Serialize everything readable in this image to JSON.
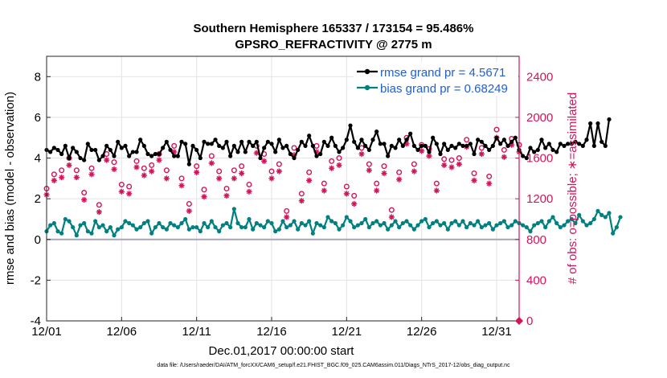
{
  "chart_data": {
    "type": "line",
    "title": "Southern Hemisphere 165337 / 173154 = 95.486%",
    "subtitle": "GPSRO_REFRACTIVITY @ 2775 m",
    "xlabel": "Dec.01,2017 00:00:00 start",
    "ylabel": "rmse and bias (model - observation)",
    "y2label": "# of obs: o=possible; ∗=assimilated",
    "xlim": [
      0,
      31.5
    ],
    "ylim": [
      -4,
      9
    ],
    "y2lim": [
      0,
      2600
    ],
    "x_ticks": [
      0,
      5,
      10,
      15,
      20,
      25,
      30
    ],
    "x_tick_labels": [
      "12/01",
      "12/06",
      "12/11",
      "12/16",
      "12/21",
      "12/26",
      "12/31"
    ],
    "y_ticks": [
      -4,
      -2,
      0,
      2,
      4,
      6,
      8
    ],
    "y_tick_labels": [
      "-4",
      "-2",
      "0",
      "2",
      "4",
      "6",
      "8"
    ],
    "y2_ticks": [
      0,
      400,
      800,
      1200,
      1600,
      2000,
      2400
    ],
    "y2_tick_labels": [
      "0",
      "400",
      "800",
      "1200",
      "1600",
      "2000",
      "2400"
    ],
    "grid": true,
    "legend_position": "top-right",
    "series": [
      {
        "name": "rmse grand pr = 4.5671",
        "color": "#000000",
        "marker": "circle-filled",
        "axis": "left",
        "step": 0.25,
        "values": [
          4.4,
          4.3,
          4.5,
          4.4,
          4.2,
          4.6,
          4.0,
          4.5,
          4.3,
          4.0,
          3.9,
          4.7,
          4.4,
          4.4,
          3.9,
          4.1,
          4.6,
          4.4,
          4.1,
          4.8,
          4.5,
          4.6,
          4.1,
          4.3,
          4.3,
          4.9,
          4.6,
          4.2,
          4.1,
          4.2,
          4.2,
          4.5,
          4.8,
          4.4,
          4.1,
          4.1,
          4.8,
          4.7,
          3.7,
          4.6,
          4.4,
          4.0,
          4.8,
          4.7,
          4.7,
          4.9,
          4.6,
          4.5,
          4.8,
          4.1,
          4.6,
          4.3,
          4.8,
          4.3,
          4.8,
          4.6,
          4.8,
          4.0,
          4.5,
          4.8,
          4.7,
          4.3,
          4.9,
          4.5,
          4.6,
          4.2,
          4.0,
          4.4,
          4.8,
          4.6,
          5.1,
          4.6,
          4.1,
          4.2,
          4.8,
          4.6,
          5.0,
          4.6,
          4.3,
          4.5,
          4.9,
          5.6,
          4.8,
          4.5,
          4.9,
          4.6,
          4.4,
          4.9,
          5.3,
          4.7,
          4.7,
          4.1,
          4.6,
          4.5,
          4.9,
          4.6,
          4.9,
          5.2,
          4.6,
          4.4,
          4.6,
          4.6,
          4.3,
          5.0,
          4.7,
          4.2,
          4.7,
          4.4,
          4.6,
          4.5,
          4.7,
          4.6,
          4.6,
          4.7,
          4.2,
          4.9,
          4.8,
          4.6,
          4.4,
          4.6,
          5.0,
          4.7,
          4.9,
          4.6,
          4.8,
          5.0,
          4.4,
          4.1,
          4.0,
          4.5,
          4.3,
          4.4,
          4.9,
          4.5,
          4.7,
          4.4,
          4.3,
          4.7,
          4.6,
          4.7,
          4.7,
          4.8,
          4.7,
          4.6,
          4.9,
          5.7,
          4.6,
          5.7,
          4.8,
          4.6,
          5.9
        ]
      },
      {
        "name": "bias grand pr = 0.68249",
        "color": "#008080",
        "marker": "circle-filled",
        "axis": "left",
        "step": 0.25,
        "values": [
          0.4,
          0.7,
          0.8,
          0.4,
          0.3,
          1.0,
          0.9,
          0.6,
          0.2,
          0.7,
          0.8,
          0.4,
          0.3,
          0.9,
          0.6,
          0.7,
          0.4,
          0.6,
          0.2,
          0.5,
          0.6,
          0.9,
          0.8,
          0.7,
          0.5,
          0.6,
          0.8,
          0.9,
          0.3,
          0.6,
          0.8,
          0.6,
          0.5,
          0.8,
          0.7,
          0.6,
          0.8,
          1.0,
          0.5,
          0.6,
          0.6,
          0.4,
          0.8,
          0.6,
          0.9,
          0.6,
          0.4,
          0.7,
          0.8,
          0.6,
          1.5,
          0.8,
          0.6,
          0.6,
          1.0,
          0.5,
          0.8,
          0.7,
          0.6,
          0.9,
          0.8,
          0.4,
          0.5,
          0.9,
          0.6,
          0.7,
          0.9,
          0.5,
          0.8,
          0.7,
          0.9,
          0.3,
          0.8,
          0.7,
          0.6,
          1.1,
          0.9,
          0.8,
          0.5,
          0.7,
          1.1,
          0.9,
          0.6,
          0.7,
          0.8,
          1.0,
          0.6,
          0.8,
          0.9,
          0.7,
          0.8,
          0.5,
          0.7,
          0.9,
          0.6,
          0.8,
          0.9,
          0.7,
          0.5,
          0.7,
          0.9,
          1.0,
          0.6,
          0.8,
          0.9,
          0.7,
          0.8,
          0.5,
          0.8,
          0.9,
          0.7,
          0.9,
          0.6,
          0.8,
          0.7,
          0.9,
          0.6,
          0.7,
          0.8,
          0.5,
          0.7,
          0.8,
          0.9,
          0.6,
          0.7,
          0.9,
          0.8,
          0.7,
          0.6,
          0.4,
          0.7,
          0.8,
          0.9,
          0.6,
          0.9,
          1.1,
          0.8,
          0.6,
          0.7,
          0.9,
          1.0,
          0.8,
          1.2,
          0.9,
          0.7,
          0.8,
          1.0,
          1.4,
          1.2,
          1.1,
          1.3,
          0.3,
          0.6,
          1.1
        ]
      },
      {
        "name": "possible",
        "color": "#d4145a",
        "marker": "circle-open",
        "axis": "right",
        "step": 0.5,
        "values": [
          1300,
          1440,
          1480,
          1600,
          1480,
          1260,
          1500,
          1140,
          1640,
          1560,
          1340,
          1320,
          1570,
          1500,
          1530,
          1640,
          1480,
          1720,
          1400,
          1150,
          1520,
          1290,
          1620,
          1470,
          1300,
          1480,
          1520,
          1340,
          1720,
          1640,
          1470,
          1540,
          1080,
          1700,
          1250,
          1460,
          1720,
          1350,
          1570,
          1600,
          1320,
          1230,
          1700,
          1540,
          1350,
          1520,
          1090,
          1460,
          1800,
          1540,
          1730,
          1690,
          1350,
          1590,
          1580,
          1600,
          1780,
          1450,
          1700,
          1420,
          1880,
          1680,
          1790,
          1730
        ]
      },
      {
        "name": "assimilated",
        "color": "#d4145a",
        "marker": "asterisk",
        "axis": "right",
        "step": 0.5,
        "values": [
          1240,
          1380,
          1410,
          1530,
          1410,
          1190,
          1440,
          1070,
          1580,
          1490,
          1270,
          1250,
          1510,
          1430,
          1470,
          1580,
          1400,
          1660,
          1330,
          1080,
          1460,
          1220,
          1550,
          1400,
          1230,
          1400,
          1450,
          1270,
          1650,
          1570,
          1400,
          1470,
          1020,
          1630,
          1180,
          1380,
          1660,
          1280,
          1500,
          1530,
          1250,
          1150,
          1640,
          1480,
          1280,
          1450,
          1020,
          1390,
          1740,
          1470,
          1670,
          1620,
          1280,
          1530,
          1510,
          1540,
          1710,
          1380,
          1640,
          1350,
          1800,
          1610,
          1730,
          1660
        ]
      }
    ]
  },
  "footnote": "data file: /Users/raeder/DAI/ATM_forcXX/CAM6_setup/f.e21.FHIST_BGC.f09_025.CAM6assim.011/Diags_NTrS_2017-12/obs_diag_output.nc"
}
